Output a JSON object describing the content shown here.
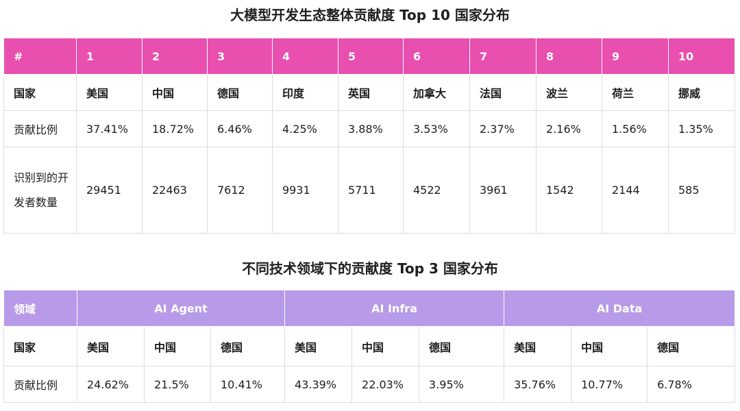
{
  "table1": {
    "title": "大模型开发生态整体贡献度 Top 10 国家分布",
    "header_label": "#",
    "ranks": [
      "1",
      "2",
      "3",
      "4",
      "5",
      "6",
      "7",
      "8",
      "9",
      "10"
    ],
    "row_labels": {
      "country": "国家",
      "share": "贡献比例",
      "devs": "识别到的开发者数量"
    },
    "countries": [
      "美国",
      "中国",
      "德国",
      "印度",
      "英国",
      "加拿大",
      "法国",
      "波兰",
      "荷兰",
      "挪威"
    ],
    "shares": [
      "37.41%",
      "18.72%",
      "6.46%",
      "4.25%",
      "3.88%",
      "3.53%",
      "2.37%",
      "2.16%",
      "1.56%",
      "1.35%"
    ],
    "devs": [
      "29451",
      "22463",
      "7612",
      "9931",
      "5711",
      "4522",
      "3961",
      "1542",
      "2144",
      "585"
    ]
  },
  "table2": {
    "title": "不同技术领域下的贡献度 Top 3 国家分布",
    "header_label": "领域",
    "domains": [
      "AI Agent",
      "AI Infra",
      "AI Data"
    ],
    "row_labels": {
      "country": "国家",
      "share": "贡献比例"
    },
    "countries": [
      "美国",
      "中国",
      "德国",
      "美国",
      "中国",
      "德国",
      "美国",
      "中国",
      "德国"
    ],
    "shares": [
      "24.62%",
      "21.5%",
      "10.41%",
      "43.39%",
      "22.03%",
      "3.95%",
      "35.76%",
      "10.77%",
      "6.78%"
    ]
  },
  "colors": {
    "table1_header_bg": "#e84fae",
    "table2_header_bg": "#b79ae8",
    "border": "#dcdcdc"
  }
}
